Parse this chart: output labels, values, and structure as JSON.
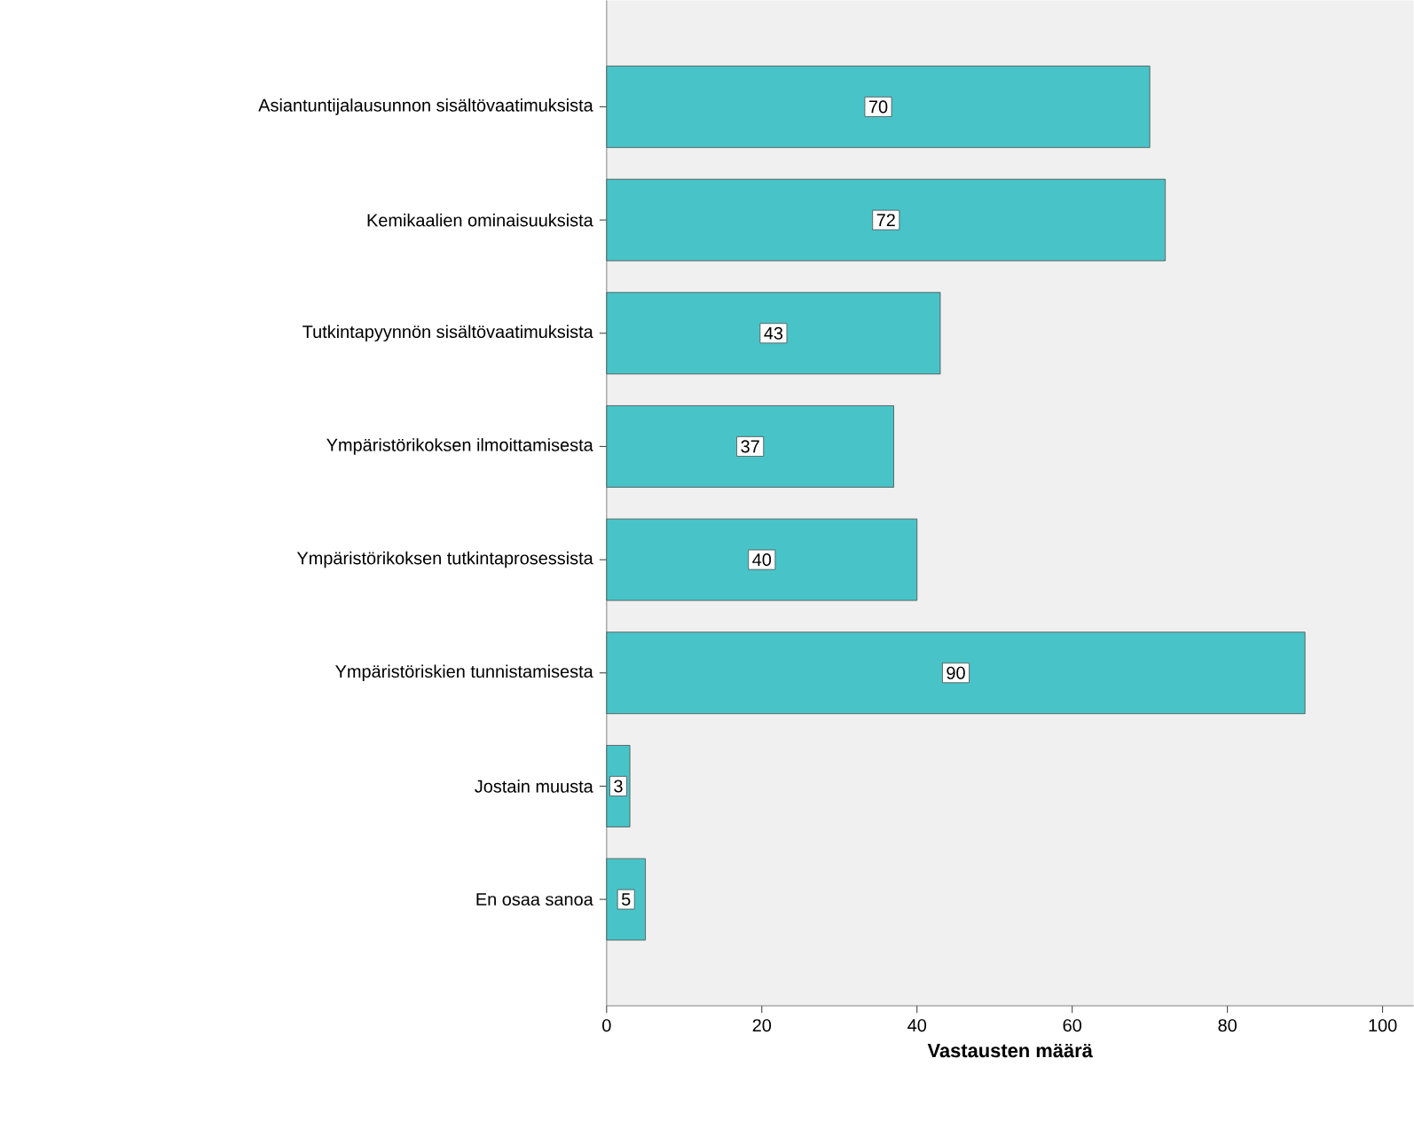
{
  "chart_data": {
    "type": "bar",
    "orientation": "horizontal",
    "categories": [
      "Asiantuntijalausunnon sisältövaatimuksista",
      "Kemikaalien ominaisuuksista",
      "Tutkintapyynnön sisältövaatimuksista",
      "Ympäristörikoksen ilmoittamisesta",
      "Ympäristörikoksen tutkintaprosessista",
      "Ympäristöriskien tunnistamisesta",
      "Jostain muusta",
      "En osaa sanoa"
    ],
    "values": [
      70,
      72,
      43,
      37,
      40,
      90,
      3,
      5
    ],
    "color": "#48c4c8",
    "xlim": [
      0,
      104
    ],
    "xticks": [
      0,
      20,
      40,
      60,
      80,
      100
    ],
    "xlabel": "Vastausten määrä",
    "data_labels": true,
    "grid": false
  }
}
